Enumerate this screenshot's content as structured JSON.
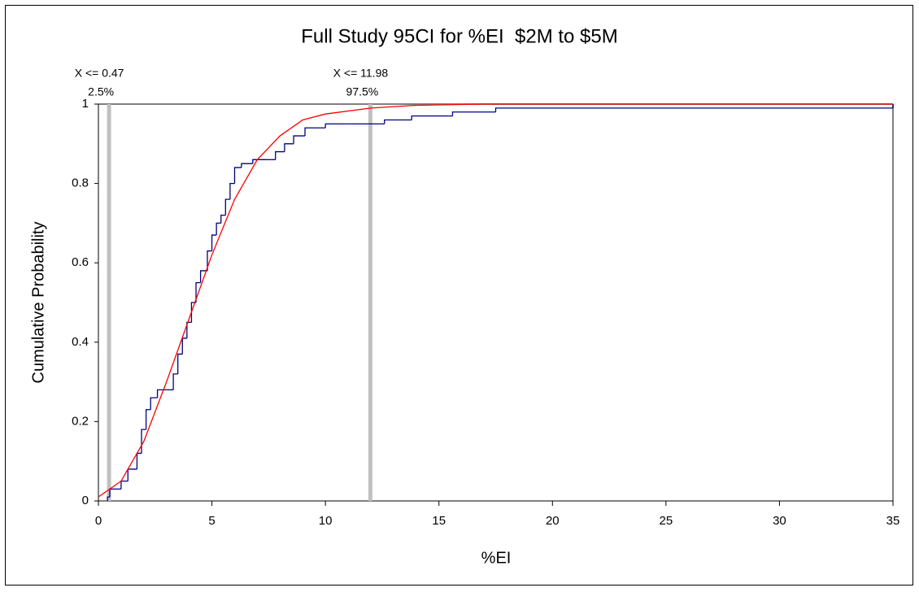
{
  "chart_data": {
    "type": "step-cdf",
    "title": "Full Study 95CI for %EI  $2M to $5M",
    "x_label": "%EI",
    "y_label": "Cumulative Probability",
    "xlim": [
      0,
      35
    ],
    "xticks": [
      0,
      5,
      10,
      15,
      20,
      25,
      30,
      35
    ],
    "ylim": [
      0,
      1
    ],
    "yticks": [
      0,
      0.2,
      0.4,
      0.6,
      0.8,
      1
    ],
    "series": [
      {
        "kind": "empirical",
        "color": "#000080",
        "x": [
          0.4,
          0.5,
          1.0,
          1.3,
          1.7,
          1.9,
          2.1,
          2.3,
          2.6,
          3.0,
          3.3,
          3.5,
          3.7,
          3.9,
          4.1,
          4.3,
          4.5,
          4.8,
          5.0,
          5.2,
          5.4,
          5.6,
          5.8,
          6.0,
          6.3,
          6.8,
          7.4,
          7.8,
          8.2,
          8.6,
          9.1,
          10.0,
          11.0,
          12.6,
          13.8,
          15.6,
          17.5,
          35
        ],
        "values": [
          0.01,
          0.03,
          0.05,
          0.08,
          0.12,
          0.18,
          0.23,
          0.26,
          0.28,
          0.28,
          0.32,
          0.37,
          0.41,
          0.45,
          0.5,
          0.55,
          0.58,
          0.63,
          0.67,
          0.7,
          0.72,
          0.76,
          0.8,
          0.84,
          0.85,
          0.86,
          0.86,
          0.88,
          0.9,
          0.92,
          0.94,
          0.95,
          0.95,
          0.96,
          0.97,
          0.98,
          0.99,
          1.0
        ]
      },
      {
        "kind": "fitted",
        "color": "#ff0000",
        "x": [
          0,
          1,
          2,
          3,
          4,
          5,
          6,
          7,
          8,
          9,
          10,
          12,
          14,
          17,
          20,
          35
        ],
        "values": [
          0.01,
          0.05,
          0.15,
          0.3,
          0.46,
          0.62,
          0.76,
          0.86,
          0.92,
          0.96,
          0.975,
          0.99,
          0.997,
          1,
          1,
          1
        ]
      }
    ],
    "ci_lines": [
      {
        "value": 0.47,
        "label": "X <= 0.47",
        "percent": "2.5%"
      },
      {
        "value": 11.98,
        "label": "X <= 11.98",
        "percent": "97.5%"
      }
    ],
    "ci_color": "#c0c0c0"
  }
}
